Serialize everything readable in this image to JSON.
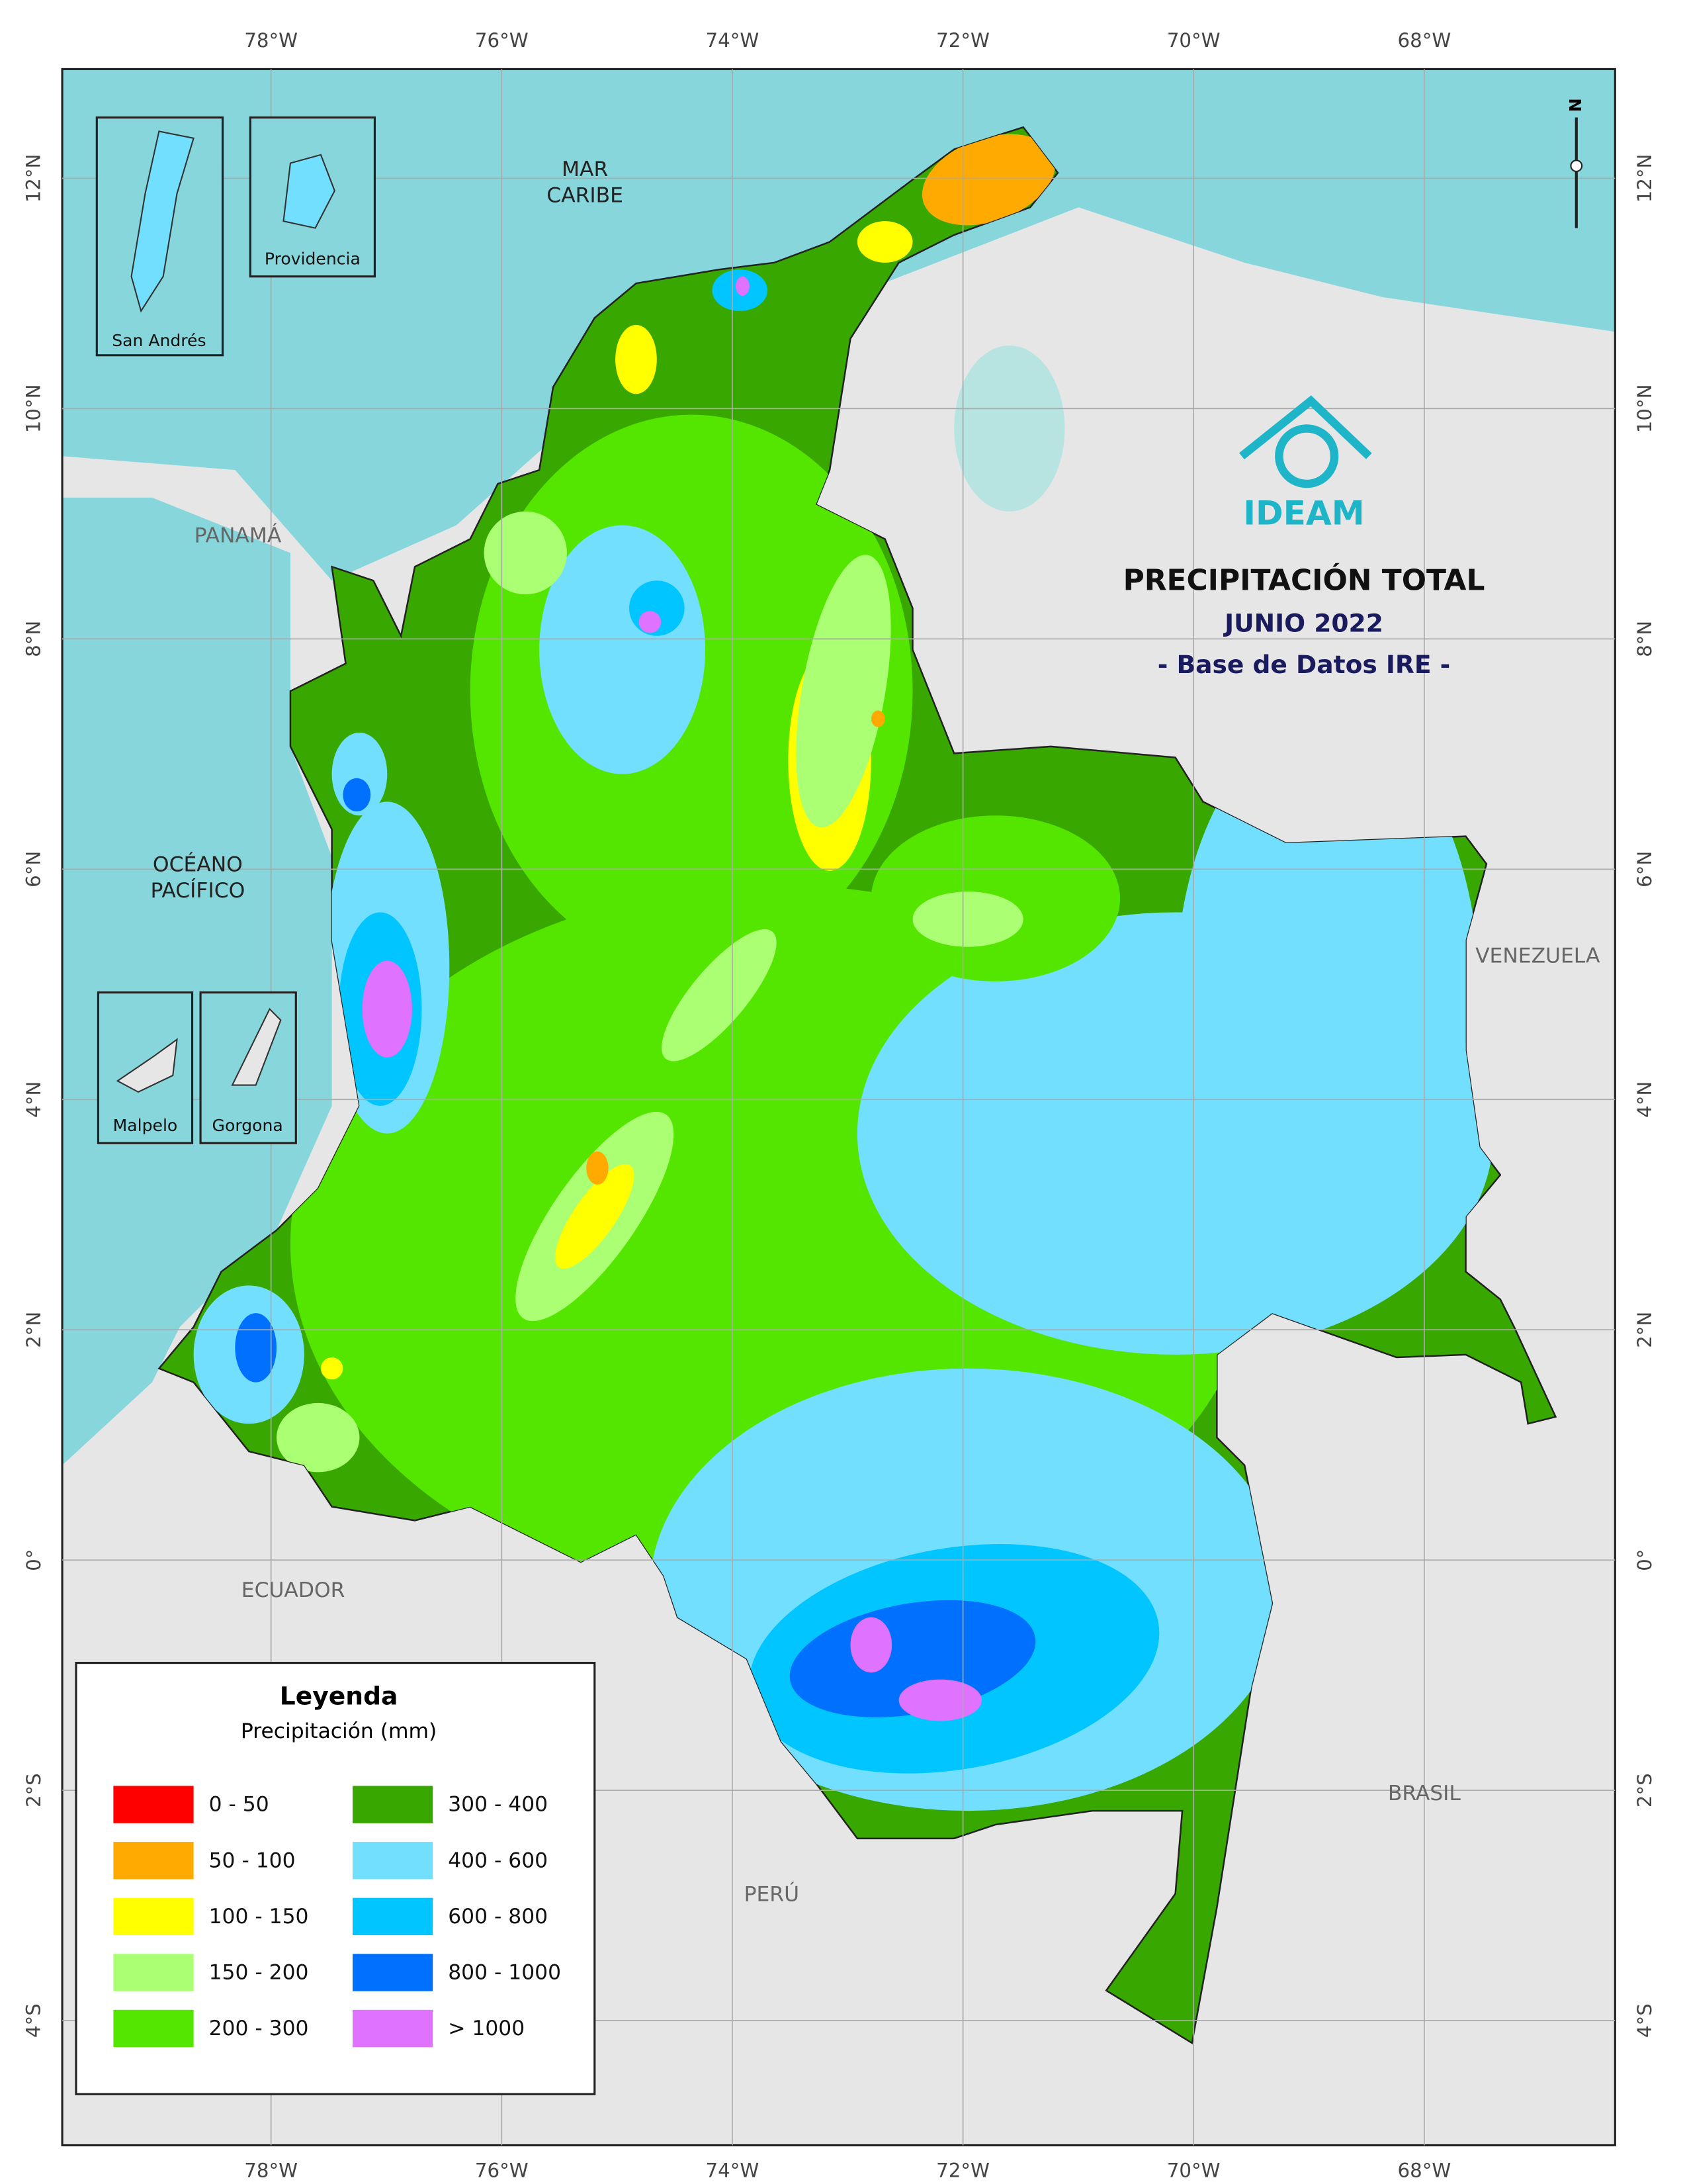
{
  "map": {
    "title": "PRECIPITACIÓN TOTAL",
    "subtitle": "JUNIO 2022",
    "source": "- Base de Datos IRE -",
    "logo": "IDEAM",
    "north_label": "N",
    "lon_labels": [
      "78°W",
      "76°W",
      "74°W",
      "72°W",
      "70°W",
      "68°W"
    ],
    "lat_labels": [
      "12°N",
      "10°N",
      "8°N",
      "6°N",
      "4°N",
      "2°N",
      "0°",
      "2°S",
      "4°S"
    ],
    "places": [
      {
        "lines": [
          "MAR",
          "CARIBE"
        ]
      },
      {
        "lines": [
          "PANAMÁ"
        ]
      },
      {
        "lines": [
          "OCÉANO",
          "PACÍFICO"
        ]
      },
      {
        "lines": [
          "VENEZUELA"
        ]
      },
      {
        "lines": [
          "ECUADOR"
        ]
      },
      {
        "lines": [
          "PERÚ"
        ]
      },
      {
        "lines": [
          "BRASIL"
        ]
      }
    ],
    "insets": [
      "San Andrés",
      "Providencia",
      "Malpelo",
      "Gorgona"
    ],
    "legend": {
      "title": "Leyenda",
      "subtitle": "Precipitación (mm)",
      "items": [
        {
          "label": "0 - 50",
          "color": "#ff0000"
        },
        {
          "label": "50 - 100",
          "color": "#ffaa00"
        },
        {
          "label": "100 - 150",
          "color": "#ffff00"
        },
        {
          "label": "150 - 200",
          "color": "#aaff73"
        },
        {
          "label": "200 - 300",
          "color": "#55e600"
        },
        {
          "label": "300 - 400",
          "color": "#38a800"
        },
        {
          "label": "400 - 600",
          "color": "#73dfff"
        },
        {
          "label": "600 - 800",
          "color": "#00c5ff"
        },
        {
          "label": "800 - 1000",
          "color": "#0070ff"
        },
        {
          "label": "> 1000",
          "color": "#df73ff"
        }
      ]
    }
  }
}
